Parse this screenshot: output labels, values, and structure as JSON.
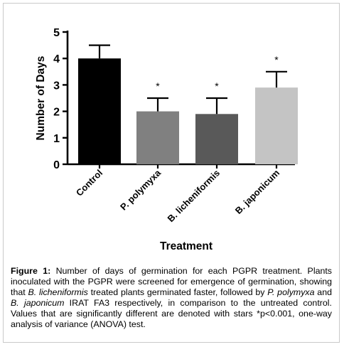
{
  "chart_data": {
    "type": "bar",
    "categories": [
      "Control",
      "P. polymyxa",
      "B. licheniformis",
      "B. japonicum"
    ],
    "values": [
      4.0,
      2.0,
      1.9,
      2.9
    ],
    "errors": [
      0.5,
      0.5,
      0.6,
      0.6
    ],
    "significance": [
      "",
      "*",
      "*",
      "*"
    ],
    "bar_colors": [
      "#000000",
      "#808080",
      "#595959",
      "#c4c4c4"
    ],
    "xlabel": "Treatment",
    "ylabel": "Number of Days",
    "ylim": [
      0,
      5
    ],
    "yticks": [
      0,
      1,
      2,
      3,
      4,
      5
    ],
    "grid": false,
    "legend": "none"
  },
  "caption": {
    "label": "Figure 1:",
    "parts": [
      {
        "t": " Number of days of germination for each PGPR treatment. Plants inoculated with the PGPR were screened for emergence of germination, showing that ",
        "i": false
      },
      {
        "t": "B. licheniformis",
        "i": true
      },
      {
        "t": " treated plants germinated faster, followed by ",
        "i": false
      },
      {
        "t": "P. polymyxa",
        "i": true
      },
      {
        "t": " and ",
        "i": false
      },
      {
        "t": "B. japonicum",
        "i": true
      },
      {
        "t": " IRAT FA3 respectively, in comparison to the untreated control. Values that are significantly different are denoted with stars *p<0.001, one-way analysis of variance (ANOVA) test.",
        "i": false
      }
    ]
  }
}
